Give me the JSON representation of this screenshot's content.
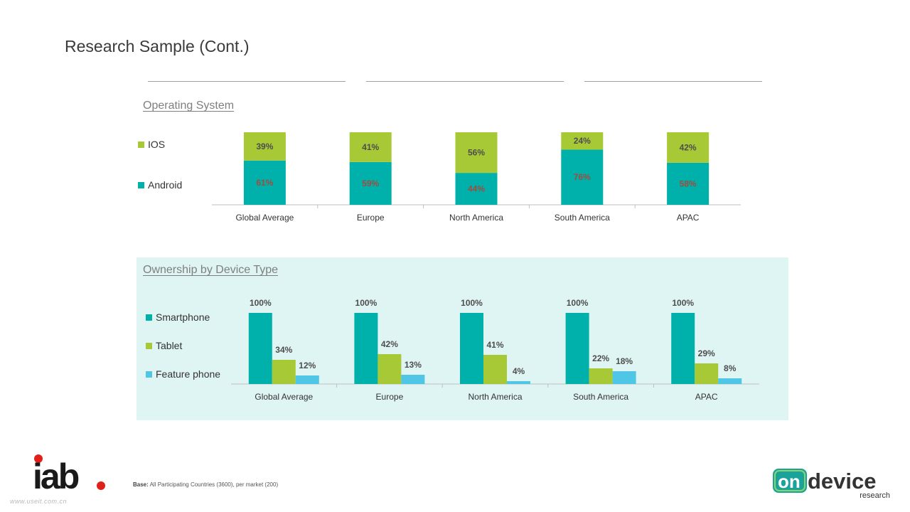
{
  "page": {
    "title": "Research Sample (Cont.)",
    "base_label": "Base:",
    "base_text": "All Participating Countries (3600), per market (200)",
    "watermark": "www.useit.com.cn"
  },
  "logos": {
    "iab": "iab",
    "ondevice_on": "on",
    "ondevice_device": "device",
    "ondevice_research": "research"
  },
  "colors": {
    "teal": "#00b0aa",
    "green": "#a7c936",
    "lightblue": "#4fc6e6",
    "panel": "#dff5f3",
    "iab_red": "#e0201b"
  },
  "chart_data": [
    {
      "type": "bar",
      "stacked": true,
      "title": "Operating System",
      "categories": [
        "Global Average",
        "Europe",
        "North America",
        "South America",
        "APAC"
      ],
      "series": [
        {
          "name": "Android",
          "values": [
            61,
            59,
            44,
            76,
            58
          ],
          "labels": [
            "61%",
            "59%",
            "44%",
            "76%",
            "58%"
          ]
        },
        {
          "name": "IOS",
          "values": [
            39,
            41,
            56,
            24,
            42
          ],
          "labels": [
            "39%",
            "41%",
            "56%",
            "24%",
            "42%"
          ]
        }
      ],
      "ylim": [
        0,
        100
      ],
      "legend": "left"
    },
    {
      "type": "bar",
      "stacked": false,
      "title": "Ownership by Device Type",
      "categories": [
        "Global Average",
        "Europe",
        "North America",
        "South America",
        "APAC"
      ],
      "series": [
        {
          "name": "Smartphone",
          "values": [
            100,
            100,
            100,
            100,
            100
          ],
          "labels": [
            "100%",
            "100%",
            "100%",
            "100%",
            "100%"
          ]
        },
        {
          "name": "Tablet",
          "values": [
            34,
            42,
            41,
            22,
            29
          ],
          "labels": [
            "34%",
            "42%",
            "41%",
            "22%",
            "29%"
          ]
        },
        {
          "name": "Feature phone",
          "values": [
            12,
            13,
            4,
            18,
            8
          ],
          "labels": [
            "12%",
            "13%",
            "4%",
            "18%",
            "8%"
          ]
        }
      ],
      "ylim": [
        0,
        100
      ],
      "legend": "left"
    }
  ]
}
